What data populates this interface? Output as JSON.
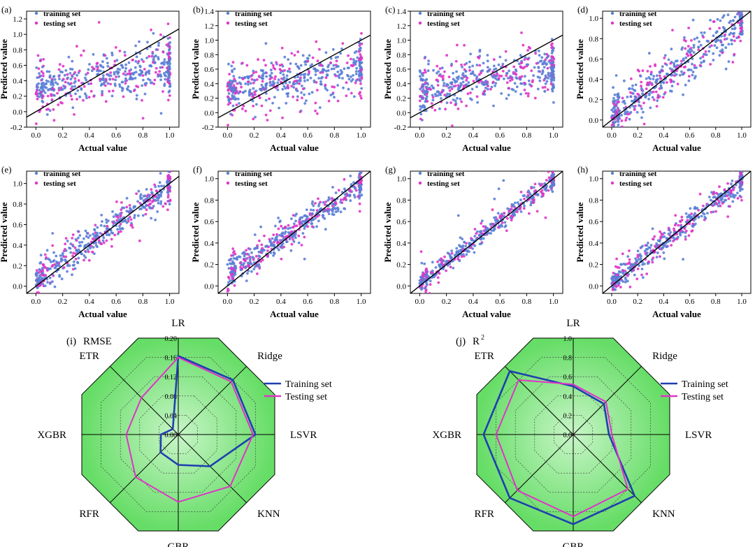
{
  "figure": {
    "colors": {
      "training": "#5a7fd6",
      "testing": "#e033c8",
      "radar_training": "#1f3fb0",
      "radar_testing": "#e033c8",
      "radar_fill_outer": "#66dd66",
      "radar_fill_inner": "#c8f5c8",
      "identity_line": "#000000"
    }
  },
  "chart_data": [
    {
      "type": "scatter",
      "panel": "(a)",
      "xlabel": "Actual value",
      "ylabel": "Predicted value",
      "xlim": [
        -0.07,
        1.07
      ],
      "ylim": [
        -0.2,
        1.3
      ],
      "xticks": [
        "0.0",
        "0.2",
        "0.4",
        "0.6",
        "0.8",
        "1.0"
      ],
      "yticks": [
        "-0.2",
        "0.0",
        "0.2",
        "0.4",
        "0.6",
        "0.8",
        "1.0",
        "1.2"
      ],
      "legend": [
        "training set",
        "testing set"
      ],
      "model": {
        "type": "linear",
        "slope": 0.3,
        "intercept": 0.3,
        "spread": 0.15
      }
    },
    {
      "type": "scatter",
      "panel": "(b)",
      "xlabel": "Actual value",
      "ylabel": "Predicted value",
      "xlim": [
        -0.07,
        1.07
      ],
      "ylim": [
        -0.2,
        1.4
      ],
      "xticks": [
        "0.0",
        "0.2",
        "0.4",
        "0.6",
        "0.8",
        "1.0"
      ],
      "yticks": [
        "-0.2",
        "0.0",
        "0.2",
        "0.4",
        "0.6",
        "0.8",
        "1.0",
        "1.2",
        "1.4"
      ],
      "legend": [
        "training set",
        "testing set"
      ],
      "model": {
        "type": "linear",
        "slope": 0.32,
        "intercept": 0.3,
        "spread": 0.16
      }
    },
    {
      "type": "scatter",
      "panel": "(c)",
      "xlabel": "Actual value",
      "ylabel": "Predicted value",
      "xlim": [
        -0.07,
        1.07
      ],
      "ylim": [
        -0.2,
        1.4
      ],
      "xticks": [
        "0.0",
        "0.2",
        "0.4",
        "0.6",
        "0.8",
        "1.0"
      ],
      "yticks": [
        "-0.2",
        "0.0",
        "0.2",
        "0.4",
        "0.6",
        "0.8",
        "1.0",
        "1.2",
        "1.4"
      ],
      "legend": [
        "training set",
        "testing set"
      ],
      "model": {
        "type": "linear",
        "slope": 0.32,
        "intercept": 0.3,
        "spread": 0.16
      }
    },
    {
      "type": "scatter",
      "panel": "(d)",
      "xlabel": "Actual value",
      "ylabel": "Predicted value",
      "xlim": [
        -0.07,
        1.07
      ],
      "ylim": [
        -0.07,
        1.07
      ],
      "xticks": [
        "0.0",
        "0.2",
        "0.4",
        "0.6",
        "0.8",
        "1.0"
      ],
      "yticks": [
        "0.0",
        "0.2",
        "0.4",
        "0.6",
        "0.8",
        "1.0"
      ],
      "legend": [
        "training set",
        "testing set"
      ],
      "model": {
        "type": "linear",
        "slope": 0.9,
        "intercept": 0.05,
        "spread": 0.1
      }
    },
    {
      "type": "scatter",
      "panel": "(e)",
      "xlabel": "Actual value",
      "ylabel": "Predicted value",
      "xlim": [
        -0.07,
        1.07
      ],
      "ylim": [
        -0.07,
        1.12
      ],
      "xticks": [
        "0.0",
        "0.2",
        "0.4",
        "0.6",
        "0.8",
        "1.0"
      ],
      "yticks": [
        "0.0",
        "0.2",
        "0.4",
        "0.6",
        "0.8",
        "1.0"
      ],
      "legend": [
        "training set",
        "testing set"
      ],
      "model": {
        "type": "linear",
        "slope": 0.92,
        "intercept": 0.06,
        "spread": 0.07
      }
    },
    {
      "type": "scatter",
      "panel": "(f)",
      "xlabel": "Actual value",
      "ylabel": "Predicted value",
      "xlim": [
        -0.07,
        1.07
      ],
      "ylim": [
        -0.07,
        1.07
      ],
      "xticks": [
        "0.0",
        "0.2",
        "0.4",
        "0.6",
        "0.8",
        "1.0"
      ],
      "yticks": [
        "0.0",
        "0.2",
        "0.4",
        "0.6",
        "0.8",
        "1.0"
      ],
      "legend": [
        "training set",
        "testing set"
      ],
      "model": {
        "type": "linear",
        "slope": 0.85,
        "intercept": 0.1,
        "spread": 0.06
      }
    },
    {
      "type": "scatter",
      "panel": "(g)",
      "xlabel": "Actual value",
      "ylabel": "Predicted value",
      "xlim": [
        -0.07,
        1.07
      ],
      "ylim": [
        -0.07,
        1.07
      ],
      "xticks": [
        "0.0",
        "0.2",
        "0.4",
        "0.6",
        "0.8",
        "1.0"
      ],
      "yticks": [
        "0.0",
        "0.2",
        "0.4",
        "0.6",
        "0.8",
        "1.0"
      ],
      "legend": [
        "training set",
        "testing set"
      ],
      "model": {
        "type": "linear",
        "slope": 0.95,
        "intercept": 0.03,
        "spread": 0.04
      }
    },
    {
      "type": "scatter",
      "panel": "(h)",
      "xlabel": "Actual value",
      "ylabel": "Predicted value",
      "xlim": [
        -0.07,
        1.07
      ],
      "ylim": [
        -0.07,
        1.07
      ],
      "xticks": [
        "0.0",
        "0.2",
        "0.4",
        "0.6",
        "0.8",
        "1.0"
      ],
      "yticks": [
        "0.0",
        "0.2",
        "0.4",
        "0.6",
        "0.8",
        "1.0"
      ],
      "legend": [
        "training set",
        "testing set"
      ],
      "model": {
        "type": "linear",
        "slope": 0.95,
        "intercept": 0.03,
        "spread": 0.05
      }
    },
    {
      "type": "radar",
      "panel": "(i)",
      "title": "RMSE",
      "categories": [
        "LR",
        "Ridge",
        "LSVR",
        "KNN",
        "GBR",
        "RFR",
        "XGBR",
        "ETR"
      ],
      "rlim": [
        0,
        0.2
      ],
      "rticks": [
        "0.00",
        "0.04",
        "0.08",
        "0.12",
        "0.16",
        "0.20"
      ],
      "series": [
        {
          "name": "Training set",
          "values": [
            0.163,
            0.16,
            0.16,
            0.093,
            0.063,
            0.052,
            0.036,
            0.016
          ]
        },
        {
          "name": "Testing set",
          "values": [
            0.16,
            0.155,
            0.155,
            0.152,
            0.14,
            0.125,
            0.108,
            0.108
          ]
        }
      ]
    },
    {
      "type": "radar",
      "panel": "(j)",
      "title": "R",
      "title_sup": "2",
      "categories": [
        "LR",
        "Ridge",
        "LSVR",
        "KNN",
        "GBR",
        "RFR",
        "XGBR",
        "ETR"
      ],
      "rlim": [
        0,
        1.0
      ],
      "rticks": [
        "0.0",
        "0.2",
        "0.4",
        "0.6",
        "0.8",
        "1.0"
      ],
      "series": [
        {
          "name": "Training set",
          "values": [
            0.5,
            0.45,
            0.37,
            0.9,
            0.93,
            0.93,
            0.93,
            0.93
          ]
        },
        {
          "name": "Testing set",
          "values": [
            0.52,
            0.48,
            0.4,
            0.8,
            0.85,
            0.82,
            0.8,
            0.8
          ]
        }
      ]
    }
  ]
}
